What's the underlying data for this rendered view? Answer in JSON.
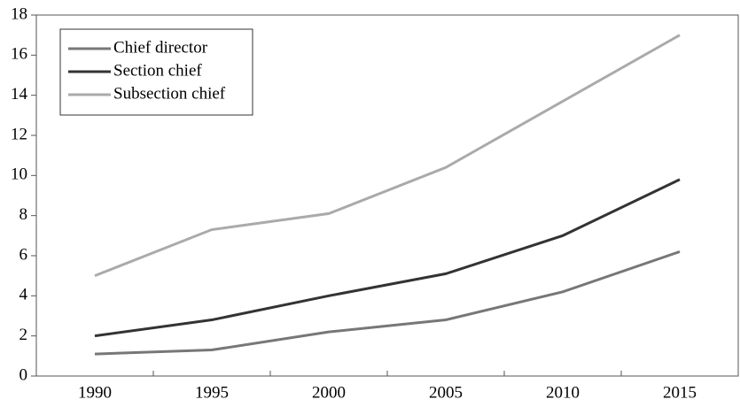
{
  "chart_data": {
    "type": "line",
    "categories": [
      "1990",
      "1995",
      "2000",
      "2005",
      "2010",
      "2015"
    ],
    "series": [
      {
        "name": "Chief director",
        "color": "#777777",
        "values": [
          1.1,
          1.3,
          2.2,
          2.8,
          4.2,
          6.2
        ]
      },
      {
        "name": "Section chief",
        "color": "#333333",
        "values": [
          2.0,
          2.8,
          4.0,
          5.1,
          7.0,
          9.8
        ]
      },
      {
        "name": "Subsection chief",
        "color": "#aaaaaa",
        "values": [
          5.0,
          7.3,
          8.1,
          10.4,
          13.7,
          17.0
        ]
      }
    ],
    "ylim": [
      0,
      18
    ],
    "yticks": [
      0,
      2,
      4,
      6,
      8,
      10,
      12,
      14,
      16,
      18
    ],
    "grid": false,
    "legend": "upper left"
  }
}
